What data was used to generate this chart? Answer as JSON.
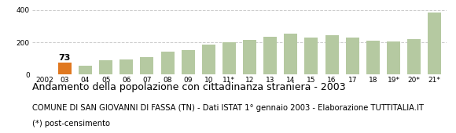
{
  "categories": [
    "2002",
    "03",
    "04",
    "05",
    "06",
    "07",
    "08",
    "09",
    "10",
    "11*",
    "12",
    "13",
    "14",
    "15",
    "16",
    "17",
    "18",
    "19*",
    "20*",
    "21*"
  ],
  "values": [
    0,
    73,
    55,
    90,
    95,
    110,
    140,
    150,
    185,
    200,
    215,
    235,
    255,
    230,
    245,
    230,
    210,
    205,
    220,
    385
  ],
  "bar_colors": [
    "#b5c9a1",
    "#e07820",
    "#b5c9a1",
    "#b5c9a1",
    "#b5c9a1",
    "#b5c9a1",
    "#b5c9a1",
    "#b5c9a1",
    "#b5c9a1",
    "#b5c9a1",
    "#b5c9a1",
    "#b5c9a1",
    "#b5c9a1",
    "#b5c9a1",
    "#b5c9a1",
    "#b5c9a1",
    "#b5c9a1",
    "#b5c9a1",
    "#b5c9a1",
    "#b5c9a1"
  ],
  "highlight_label": "73",
  "highlight_index": 1,
  "ylim": [
    0,
    430
  ],
  "yticks": [
    0,
    200,
    400
  ],
  "title": "Andamento della popolazione con cittadinanza straniera - 2003",
  "subtitle": "COMUNE DI SAN GIOVANNI DI FASSA (TN) - Dati ISTAT 1° gennaio 2003 - Elaborazione TUTTITALIA.IT",
  "footnote": "(*) post-censimento",
  "title_fontsize": 9.0,
  "subtitle_fontsize": 7.2,
  "footnote_fontsize": 7.2,
  "background_color": "#ffffff",
  "grid_color": "#cccccc",
  "tick_fontsize": 6.5,
  "bar_width": 0.65
}
